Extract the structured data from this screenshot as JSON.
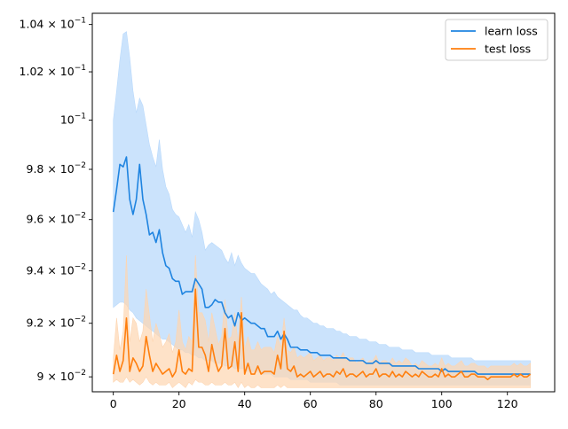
{
  "chart_data": {
    "type": "line",
    "title": "",
    "xlabel": "",
    "ylabel": "",
    "xlim": [
      -6.4,
      134.4
    ],
    "ylim": [
      0.08945,
      0.10448
    ],
    "y_scale": "log",
    "grid": false,
    "legend_position": "top-right",
    "x_ticks": [
      {
        "value": 0,
        "label": "0"
      },
      {
        "value": 20,
        "label": "20"
      },
      {
        "value": 40,
        "label": "40"
      },
      {
        "value": 60,
        "label": "60"
      },
      {
        "value": 80,
        "label": "80"
      },
      {
        "value": 100,
        "label": "100"
      },
      {
        "value": 120,
        "label": "120"
      }
    ],
    "y_ticks": [
      {
        "value": 0.09,
        "mantissa": "9",
        "base_label": "× 10",
        "exp": "−2"
      },
      {
        "value": 0.092,
        "mantissa": "9.2",
        "base_label": "× 10",
        "exp": "−2"
      },
      {
        "value": 0.094,
        "mantissa": "9.4",
        "base_label": "× 10",
        "exp": "−2"
      },
      {
        "value": 0.096,
        "mantissa": "9.6",
        "base_label": "× 10",
        "exp": "−2"
      },
      {
        "value": 0.098,
        "mantissa": "9.8",
        "base_label": "× 10",
        "exp": "−2"
      },
      {
        "value": 0.1,
        "mantissa": "10",
        "base_label": "",
        "exp": "−1"
      },
      {
        "value": 0.102,
        "mantissa": "1.02",
        "base_label": "× 10",
        "exp": "−1"
      },
      {
        "value": 0.104,
        "mantissa": "1.04",
        "base_label": "× 10",
        "exp": "−1"
      }
    ],
    "series": [
      {
        "name": "learn loss",
        "color": "#1f84e0",
        "band_color": "#b9d9fb",
        "x": [
          0,
          1,
          2,
          3,
          4,
          5,
          6,
          7,
          8,
          9,
          10,
          11,
          12,
          13,
          14,
          15,
          16,
          17,
          18,
          19,
          20,
          21,
          22,
          23,
          24,
          25,
          26,
          27,
          28,
          29,
          30,
          31,
          32,
          33,
          34,
          35,
          36,
          37,
          38,
          39,
          40,
          41,
          42,
          43,
          44,
          45,
          46,
          47,
          48,
          49,
          50,
          51,
          52,
          53,
          54,
          55,
          56,
          57,
          58,
          59,
          60,
          61,
          62,
          63,
          64,
          65,
          66,
          67,
          68,
          69,
          70,
          71,
          72,
          73,
          74,
          75,
          76,
          77,
          78,
          79,
          80,
          81,
          82,
          83,
          84,
          85,
          86,
          87,
          88,
          89,
          90,
          91,
          92,
          93,
          94,
          95,
          96,
          97,
          98,
          99,
          100,
          101,
          102,
          103,
          104,
          105,
          106,
          107,
          108,
          109,
          110,
          111,
          112,
          113,
          114,
          115,
          116,
          117,
          118,
          119,
          120,
          121,
          122,
          123,
          124,
          125,
          126,
          127
        ],
        "values": [
          0.0963,
          0.0972,
          0.0982,
          0.0981,
          0.0985,
          0.0968,
          0.0962,
          0.0968,
          0.0982,
          0.0968,
          0.0962,
          0.0954,
          0.0955,
          0.0951,
          0.0956,
          0.0947,
          0.0942,
          0.0941,
          0.0937,
          0.0936,
          0.0936,
          0.0931,
          0.0932,
          0.0932,
          0.0932,
          0.0937,
          0.0935,
          0.0933,
          0.0926,
          0.0926,
          0.0927,
          0.0929,
          0.0928,
          0.0928,
          0.0924,
          0.0922,
          0.0923,
          0.0919,
          0.0924,
          0.0921,
          0.0922,
          0.0921,
          0.092,
          0.092,
          0.0919,
          0.0918,
          0.0918,
          0.0915,
          0.0915,
          0.0915,
          0.0917,
          0.0914,
          0.0916,
          0.0914,
          0.0911,
          0.0911,
          0.0911,
          0.091,
          0.091,
          0.091,
          0.0909,
          0.0909,
          0.0909,
          0.0908,
          0.0908,
          0.0908,
          0.0908,
          0.0907,
          0.0907,
          0.0907,
          0.0907,
          0.0907,
          0.0906,
          0.0906,
          0.0906,
          0.0906,
          0.0906,
          0.0905,
          0.0905,
          0.0905,
          0.0906,
          0.0905,
          0.0905,
          0.0905,
          0.0905,
          0.0904,
          0.0904,
          0.0904,
          0.0904,
          0.0904,
          0.0904,
          0.0904,
          0.0904,
          0.0903,
          0.0903,
          0.0903,
          0.0903,
          0.0903,
          0.0903,
          0.0903,
          0.0902,
          0.0903,
          0.0902,
          0.0902,
          0.0902,
          0.0902,
          0.0902,
          0.0902,
          0.0902,
          0.0902,
          0.0902,
          0.0901,
          0.0901,
          0.0901,
          0.0901,
          0.0901,
          0.0901,
          0.0901,
          0.0901,
          0.0901,
          0.0901,
          0.0901,
          0.0901,
          0.0901,
          0.0901,
          0.0901,
          0.0901,
          0.0901
        ],
        "upper": [
          0.1,
          0.1012,
          0.1025,
          0.1036,
          0.1037,
          0.1026,
          0.1012,
          0.1003,
          0.1009,
          0.1006,
          0.0998,
          0.099,
          0.0985,
          0.0981,
          0.0992,
          0.098,
          0.0973,
          0.097,
          0.0964,
          0.0962,
          0.0961,
          0.0958,
          0.0955,
          0.0958,
          0.0953,
          0.0963,
          0.096,
          0.0955,
          0.0948,
          0.095,
          0.0951,
          0.095,
          0.0949,
          0.0948,
          0.0945,
          0.0943,
          0.0947,
          0.0942,
          0.0946,
          0.0943,
          0.0941,
          0.094,
          0.0939,
          0.0939,
          0.0937,
          0.0935,
          0.0934,
          0.0933,
          0.0931,
          0.0932,
          0.093,
          0.0929,
          0.0928,
          0.0927,
          0.0926,
          0.0925,
          0.0925,
          0.0923,
          0.0922,
          0.0922,
          0.0921,
          0.092,
          0.092,
          0.0919,
          0.0919,
          0.0918,
          0.0918,
          0.0918,
          0.0917,
          0.0917,
          0.0916,
          0.0916,
          0.0915,
          0.0915,
          0.0915,
          0.0914,
          0.0914,
          0.0914,
          0.0913,
          0.0913,
          0.0913,
          0.0912,
          0.0912,
          0.0912,
          0.0911,
          0.0911,
          0.0911,
          0.0911,
          0.091,
          0.091,
          0.091,
          0.091,
          0.0909,
          0.0909,
          0.0909,
          0.0909,
          0.0909,
          0.0908,
          0.0908,
          0.0908,
          0.0908,
          0.0908,
          0.0908,
          0.0907,
          0.0907,
          0.0907,
          0.0907,
          0.0907,
          0.0907,
          0.0907,
          0.0906,
          0.0906,
          0.0906,
          0.0906,
          0.0906,
          0.0906,
          0.0906,
          0.0906,
          0.0906,
          0.0906,
          0.0906,
          0.0906,
          0.0906,
          0.0906,
          0.0906,
          0.0906,
          0.0906,
          0.0906
        ],
        "lower": [
          0.0926,
          0.0927,
          0.0928,
          0.0928,
          0.0927,
          0.0925,
          0.0924,
          0.0922,
          0.0921,
          0.092,
          0.0919,
          0.0918,
          0.0917,
          0.0916,
          0.0915,
          0.0914,
          0.0914,
          0.0913,
          0.0912,
          0.0911,
          0.091,
          0.091,
          0.0909,
          0.0909,
          0.0908,
          0.0908,
          0.0907,
          0.0907,
          0.0906,
          0.0906,
          0.0906,
          0.0905,
          0.0905,
          0.0905,
          0.0904,
          0.0904,
          0.0904,
          0.0903,
          0.0903,
          0.0903,
          0.0903,
          0.0902,
          0.0902,
          0.0902,
          0.0902,
          0.0901,
          0.0901,
          0.0901,
          0.0901,
          0.09,
          0.09,
          0.09,
          0.09,
          0.09,
          0.0899,
          0.0899,
          0.0899,
          0.0899,
          0.0899,
          0.0899,
          0.0898,
          0.0898,
          0.0898,
          0.0898,
          0.0898,
          0.0898,
          0.0898,
          0.0898,
          0.0898,
          0.0897,
          0.0897,
          0.0897,
          0.0897,
          0.0897,
          0.0897,
          0.0897,
          0.0897,
          0.0897,
          0.0897,
          0.0897,
          0.0897,
          0.0897,
          0.0897,
          0.0897,
          0.0897,
          0.0897,
          0.0897,
          0.0897,
          0.0897,
          0.0897,
          0.0897,
          0.0897,
          0.0897,
          0.0897,
          0.0897,
          0.0897,
          0.0897,
          0.0897,
          0.0897,
          0.0897,
          0.0897,
          0.0897,
          0.0897,
          0.0897,
          0.0897,
          0.0897,
          0.0897,
          0.0897,
          0.0897,
          0.0897,
          0.0897,
          0.0897,
          0.0897,
          0.0897,
          0.0897,
          0.0897,
          0.0897,
          0.0897,
          0.0897,
          0.0897,
          0.0897,
          0.0897,
          0.0897,
          0.0897,
          0.0897,
          0.0897,
          0.0897,
          0.0897
        ]
      },
      {
        "name": "test loss",
        "color": "#ff7f0e",
        "band_color": "#fdd5b1",
        "x": [
          0,
          1,
          2,
          3,
          4,
          5,
          6,
          7,
          8,
          9,
          10,
          11,
          12,
          13,
          14,
          15,
          16,
          17,
          18,
          19,
          20,
          21,
          22,
          23,
          24,
          25,
          26,
          27,
          28,
          29,
          30,
          31,
          32,
          33,
          34,
          35,
          36,
          37,
          38,
          39,
          40,
          41,
          42,
          43,
          44,
          45,
          46,
          47,
          48,
          49,
          50,
          51,
          52,
          53,
          54,
          55,
          56,
          57,
          58,
          59,
          60,
          61,
          62,
          63,
          64,
          65,
          66,
          67,
          68,
          69,
          70,
          71,
          72,
          73,
          74,
          75,
          76,
          77,
          78,
          79,
          80,
          81,
          82,
          83,
          84,
          85,
          86,
          87,
          88,
          89,
          90,
          91,
          92,
          93,
          94,
          95,
          96,
          97,
          98,
          99,
          100,
          101,
          102,
          103,
          104,
          105,
          106,
          107,
          108,
          109,
          110,
          111,
          112,
          113,
          114,
          115,
          116,
          117,
          118,
          119,
          120,
          121,
          122,
          123,
          124,
          125,
          126,
          127
        ],
        "values": [
          0.0901,
          0.0908,
          0.0902,
          0.0906,
          0.0922,
          0.0902,
          0.0907,
          0.0905,
          0.0902,
          0.0904,
          0.0915,
          0.0908,
          0.0902,
          0.0905,
          0.0903,
          0.0901,
          0.0902,
          0.0903,
          0.09,
          0.0902,
          0.091,
          0.0902,
          0.0901,
          0.0903,
          0.0902,
          0.0933,
          0.0911,
          0.0911,
          0.0908,
          0.0902,
          0.0912,
          0.0906,
          0.0902,
          0.0904,
          0.0918,
          0.0903,
          0.0904,
          0.0913,
          0.0902,
          0.0924,
          0.0901,
          0.0905,
          0.0901,
          0.0901,
          0.0904,
          0.0901,
          0.0902,
          0.0902,
          0.0902,
          0.0901,
          0.0908,
          0.0903,
          0.0917,
          0.0903,
          0.0902,
          0.0904,
          0.09,
          0.0901,
          0.09,
          0.0901,
          0.0902,
          0.09,
          0.0901,
          0.0902,
          0.09,
          0.0901,
          0.0901,
          0.09,
          0.0902,
          0.0901,
          0.0903,
          0.09,
          0.0901,
          0.0901,
          0.09,
          0.0901,
          0.0902,
          0.09,
          0.0901,
          0.0901,
          0.0903,
          0.09,
          0.0901,
          0.0901,
          0.09,
          0.0902,
          0.09,
          0.0901,
          0.09,
          0.0902,
          0.0901,
          0.09,
          0.0901,
          0.09,
          0.0902,
          0.0901,
          0.09,
          0.09,
          0.0901,
          0.09,
          0.0903,
          0.09,
          0.0901,
          0.09,
          0.09,
          0.0901,
          0.0902,
          0.09,
          0.09,
          0.0901,
          0.0901,
          0.09,
          0.09,
          0.09,
          0.0899,
          0.09,
          0.09,
          0.09,
          0.09,
          0.09,
          0.09,
          0.09,
          0.0901,
          0.09,
          0.0901,
          0.09,
          0.09,
          0.0901
        ],
        "upper": [
          0.0907,
          0.0922,
          0.091,
          0.0917,
          0.0946,
          0.0913,
          0.0922,
          0.092,
          0.0913,
          0.0917,
          0.0933,
          0.0923,
          0.0913,
          0.092,
          0.0916,
          0.0911,
          0.0913,
          0.0916,
          0.0909,
          0.0913,
          0.0925,
          0.0913,
          0.091,
          0.0915,
          0.0913,
          0.0946,
          0.0924,
          0.0924,
          0.0921,
          0.0913,
          0.0924,
          0.0918,
          0.0912,
          0.0915,
          0.0929,
          0.0914,
          0.0915,
          0.0924,
          0.0912,
          0.093,
          0.091,
          0.0915,
          0.091,
          0.091,
          0.0913,
          0.091,
          0.0911,
          0.0911,
          0.0911,
          0.0909,
          0.0915,
          0.0911,
          0.0922,
          0.091,
          0.0909,
          0.0911,
          0.0907,
          0.0908,
          0.0907,
          0.0908,
          0.0909,
          0.0906,
          0.0907,
          0.0908,
          0.0906,
          0.0907,
          0.0907,
          0.0906,
          0.0908,
          0.0907,
          0.0909,
          0.0906,
          0.0907,
          0.0907,
          0.0905,
          0.0906,
          0.0907,
          0.0905,
          0.0906,
          0.0906,
          0.0908,
          0.0905,
          0.0906,
          0.0906,
          0.0905,
          0.0907,
          0.0905,
          0.0906,
          0.0905,
          0.0907,
          0.0906,
          0.0904,
          0.0905,
          0.0904,
          0.0906,
          0.0905,
          0.0904,
          0.0904,
          0.0905,
          0.0904,
          0.0907,
          0.0904,
          0.0905,
          0.0904,
          0.0904,
          0.0905,
          0.0906,
          0.0904,
          0.0904,
          0.0905,
          0.0905,
          0.0904,
          0.0904,
          0.0904,
          0.0903,
          0.0904,
          0.0904,
          0.0904,
          0.0904,
          0.0904,
          0.0904,
          0.0904,
          0.0905,
          0.0904,
          0.0905,
          0.0904,
          0.0904,
          0.0905
        ],
        "lower": [
          0.0898,
          0.0899,
          0.0898,
          0.0898,
          0.09,
          0.0898,
          0.0899,
          0.0898,
          0.0897,
          0.0898,
          0.09,
          0.0898,
          0.0897,
          0.0898,
          0.0897,
          0.0897,
          0.0897,
          0.0898,
          0.0896,
          0.0897,
          0.0898,
          0.0897,
          0.0896,
          0.0898,
          0.0897,
          0.0899,
          0.0898,
          0.0898,
          0.0897,
          0.0897,
          0.0898,
          0.0897,
          0.0897,
          0.0897,
          0.0898,
          0.0897,
          0.0897,
          0.0898,
          0.0896,
          0.0898,
          0.0896,
          0.0897,
          0.0896,
          0.0896,
          0.0897,
          0.0896,
          0.0896,
          0.0896,
          0.0896,
          0.0896,
          0.0897,
          0.0896,
          0.0897,
          0.0896,
          0.0896,
          0.0896,
          0.0896,
          0.0896,
          0.0896,
          0.0896,
          0.0896,
          0.0896,
          0.0896,
          0.0896,
          0.0896,
          0.0896,
          0.0896,
          0.0896,
          0.0896,
          0.0896,
          0.0896,
          0.0896,
          0.0896,
          0.0896,
          0.0896,
          0.0896,
          0.0896,
          0.0896,
          0.0896,
          0.0896,
          0.0896,
          0.0896,
          0.0896,
          0.0896,
          0.0896,
          0.0896,
          0.0896,
          0.0896,
          0.0896,
          0.0896,
          0.0896,
          0.0896,
          0.0896,
          0.0896,
          0.0896,
          0.0896,
          0.0896,
          0.0896,
          0.0896,
          0.0896,
          0.0896,
          0.0896,
          0.0896,
          0.0896,
          0.0896,
          0.0896,
          0.0896,
          0.0896,
          0.0896,
          0.0896,
          0.0896,
          0.0896,
          0.0896,
          0.0896,
          0.0896,
          0.0896,
          0.0896,
          0.0896,
          0.0896,
          0.0896,
          0.0896,
          0.0896,
          0.0896,
          0.0896,
          0.0896,
          0.0896,
          0.0896,
          0.0896
        ]
      }
    ]
  }
}
